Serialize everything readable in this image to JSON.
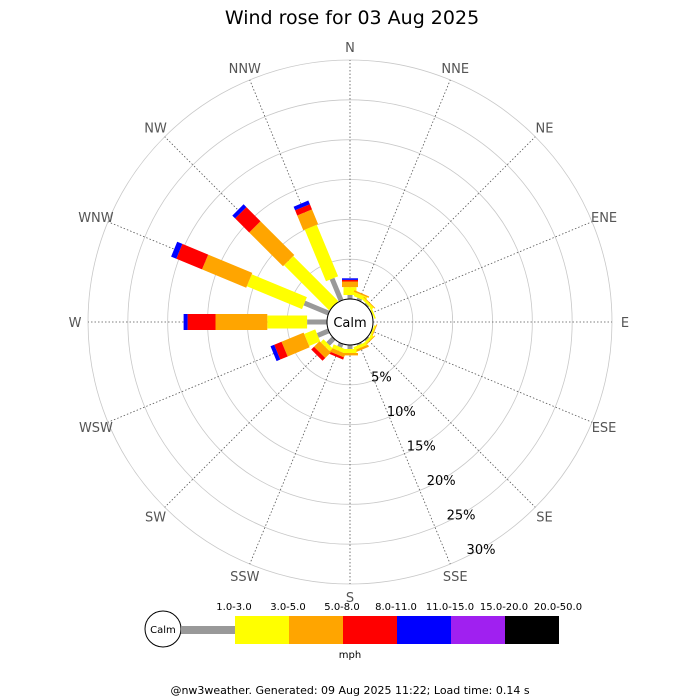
{
  "page": {
    "title": "Wind rose for 03 Aug 2025",
    "footer": "@nw3weather. Generated: 09 Aug 2025 11:22; Load time: 0.14 s"
  },
  "chart_data": {
    "type": "wind-rose",
    "title": "Wind rose for 03 Aug 2025",
    "center_label": "Calm",
    "directions": [
      "N",
      "NNE",
      "NE",
      "ENE",
      "E",
      "ESE",
      "SE",
      "SSE",
      "S",
      "SSW",
      "SW",
      "WSW",
      "W",
      "WNW",
      "NW",
      "NNW"
    ],
    "ring_labels": [
      "5%",
      "10%",
      "15%",
      "20%",
      "25%",
      "30%"
    ],
    "rmax_percent": 30,
    "unit": "mph",
    "speed_bins": [
      {
        "label": "1.0-3.0",
        "color": "#999999"
      },
      {
        "label": "3.0-5.0",
        "color": "#ffff00"
      },
      {
        "label": "5.0-8.0",
        "color": "#ffa500"
      },
      {
        "label": "8.0-11.0",
        "color": "#ff0000"
      },
      {
        "label": "11.0-15.0",
        "color": "#0000ff"
      },
      {
        "label": "15.0-20.0",
        "color": "#a020f0"
      },
      {
        "label": "20.0-50.0",
        "color": "#000000"
      }
    ],
    "frequencies_percent": {
      "N": [
        0.5,
        1.0,
        0.7,
        0.2,
        0.2,
        0,
        0
      ],
      "NNE": [
        0.3,
        0.5,
        0.2,
        0,
        0,
        0,
        0
      ],
      "NE": [
        0.2,
        0.3,
        0.1,
        0,
        0,
        0,
        0
      ],
      "ENE": [
        0.1,
        0.2,
        0,
        0,
        0,
        0,
        0
      ],
      "E": [
        0,
        0,
        0,
        0,
        0,
        0,
        0
      ],
      "ESE": [
        0.1,
        0.2,
        0.1,
        0,
        0,
        0,
        0
      ],
      "SE": [
        0.2,
        0.3,
        0.1,
        0,
        0,
        0,
        0
      ],
      "SSE": [
        0.2,
        0.4,
        0.3,
        0,
        0,
        0,
        0
      ],
      "S": [
        0.5,
        0.5,
        0.3,
        0,
        0,
        0,
        0
      ],
      "SSW": [
        0.5,
        0.5,
        0.5,
        0.3,
        0,
        0,
        0
      ],
      "SW": [
        1.0,
        0.5,
        1.0,
        0.5,
        0,
        0,
        0
      ],
      "WSW": [
        1.5,
        1.5,
        3.0,
        1.0,
        0.5,
        0,
        0
      ],
      "W": [
        2.5,
        5.0,
        6.5,
        3.5,
        0.5,
        0,
        0
      ],
      "WNW": [
        3.3,
        7.5,
        6.0,
        3.5,
        0.7,
        0,
        0
      ],
      "NW": [
        0,
        8.0,
        6.0,
        2.5,
        0.5,
        0,
        0
      ],
      "NNW": [
        3.0,
        7.0,
        2.0,
        0.7,
        0.5,
        0,
        0
      ]
    },
    "grid": true
  }
}
